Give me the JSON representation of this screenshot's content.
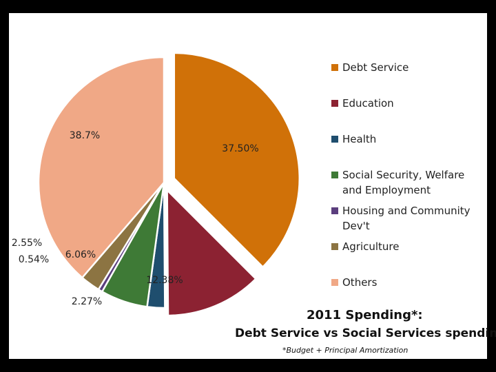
{
  "chart_data": {
    "type": "pie",
    "title": "2011 Spending*:",
    "subtitle": "Debt Service vs Social Services spending",
    "footnote": "*Budget + Principal Amortization",
    "slices": [
      {
        "name": "Debt Service",
        "value": 37.5,
        "label": "37.50%",
        "color": "#D07108"
      },
      {
        "name": "Education",
        "value": 12.38,
        "label": "12.38%",
        "color": "#8C2232"
      },
      {
        "name": "Health",
        "value": 2.27,
        "label": "2.27%",
        "color": "#1F4E6E"
      },
      {
        "name": "Social Security, Welfare and Employment",
        "value": 6.06,
        "label": "6.06%",
        "color": "#3E7A36"
      },
      {
        "name": "Housing and Community Dev't",
        "value": 0.54,
        "label": "0.54%",
        "color": "#5B3E7E"
      },
      {
        "name": "Agriculture",
        "value": 2.55,
        "label": "2.55%",
        "color": "#8C7442"
      },
      {
        "name": "Others",
        "value": 38.7,
        "label": "38.7%",
        "color": "#F0A886"
      }
    ],
    "legend": [
      {
        "label": "Debt Service",
        "color": "#D07108"
      },
      {
        "label": "Education",
        "color": "#8C2232"
      },
      {
        "label": "Health",
        "color": "#1F4E6E"
      },
      {
        "label": "Social Security, Welfare and Employment",
        "color": "#3E7A36"
      },
      {
        "label": "Housing and Community Dev't",
        "color": "#5B3E7E"
      },
      {
        "label": "Agriculture",
        "color": "#8C7442"
      },
      {
        "label": "Others",
        "color": "#F0A886"
      }
    ],
    "legend_position": "right"
  }
}
